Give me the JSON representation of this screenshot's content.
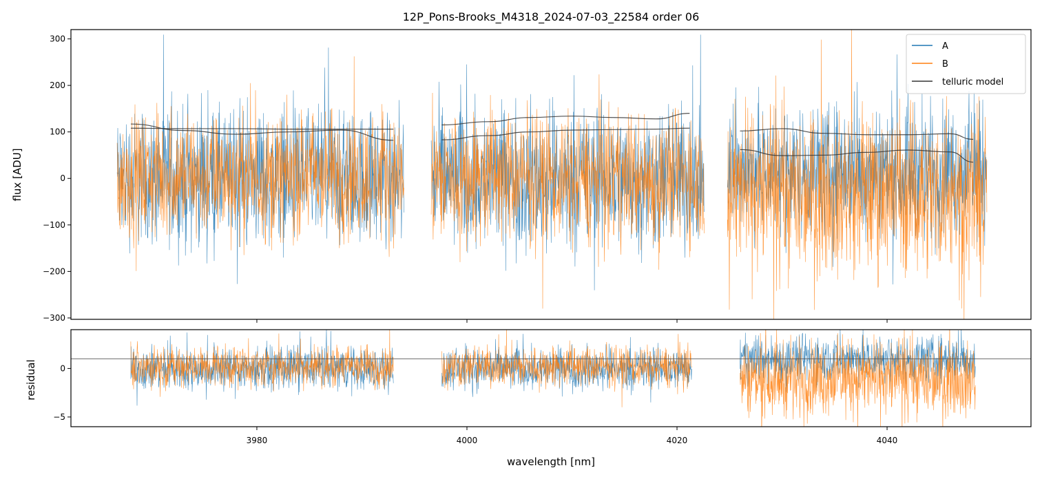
{
  "chart_data": [
    {
      "type": "line",
      "panel": "flux",
      "title": "12P_Pons-Brooks_M4318_2024-07-03_22584  order 06",
      "xlabel": "",
      "ylabel": "flux [ADU]",
      "xlim": [
        3962.3,
        4053.7
      ],
      "ylim": [
        -303,
        320
      ],
      "yticks": [
        -300,
        -200,
        -100,
        0,
        100,
        200,
        300
      ],
      "ytick_labels": [
        "−300",
        "−200",
        "−100",
        "0",
        "100",
        "200",
        "300"
      ],
      "xticks": [
        3980,
        4000,
        4020,
        4040
      ],
      "grid": false,
      "legend": {
        "placement": "top-right",
        "entries": [
          "A",
          "B",
          "telluric model"
        ]
      },
      "colors": {
        "A": "#1f77b4",
        "B": "#ff7f0e",
        "telluric model": "#000000"
      },
      "segments": [
        {
          "x_range": [
            3966.7,
            3994.0
          ],
          "A": {
            "mean": 0,
            "amplitude": 210
          },
          "B": {
            "mean": 5,
            "amplitude": 190
          }
        },
        {
          "x_range": [
            3996.6,
            4022.6
          ],
          "A": {
            "mean": 0,
            "amplitude": 220
          },
          "B": {
            "mean": 0,
            "amplitude": 200
          }
        },
        {
          "x_range": [
            4024.8,
            4049.5
          ],
          "A": {
            "mean": 20,
            "amplitude": 200
          },
          "B": {
            "mean": -30,
            "amplitude": 250
          }
        }
      ],
      "series": [
        {
          "name": "telluric model",
          "segment": 1,
          "x": [
            3968,
            3973,
            3978,
            3983,
            3988,
            3993
          ],
          "values": [
            117,
            103,
            95,
            100,
            104,
            82
          ]
        },
        {
          "name": "telluric model",
          "segment": 1,
          "x": [
            3968,
            3973,
            3978,
            3983,
            3988,
            3993
          ],
          "values": [
            108,
            107,
            107,
            106,
            106,
            106
          ]
        },
        {
          "name": "telluric model",
          "segment": 2,
          "x": [
            3997.6,
            4002,
            4006,
            4010,
            4014,
            4018,
            4021.2
          ],
          "values": [
            115,
            122,
            131,
            134,
            131,
            128,
            140
          ]
        },
        {
          "name": "telluric model",
          "segment": 2,
          "x": [
            3997.6,
            4002,
            4006,
            4010,
            4014,
            4018,
            4021.2
          ],
          "values": [
            83,
            92,
            100,
            104,
            105,
            106,
            108
          ]
        },
        {
          "name": "telluric model",
          "segment": 3,
          "x": [
            4026,
            4030,
            4034,
            4038,
            4042,
            4046,
            4048.2
          ],
          "values": [
            102,
            107,
            97,
            94,
            94,
            96,
            84
          ]
        },
        {
          "name": "telluric model",
          "segment": 3,
          "x": [
            4026,
            4030,
            4034,
            4038,
            4042,
            4046,
            4048.2
          ],
          "values": [
            62,
            49,
            50,
            56,
            61,
            57,
            35
          ]
        }
      ]
    },
    {
      "type": "line",
      "panel": "residual",
      "title": "",
      "xlabel": "wavelength [nm]",
      "ylabel": "residual",
      "xlim": [
        3962.3,
        4053.7
      ],
      "ylim": [
        -6,
        4
      ],
      "yticks": [
        -5,
        0
      ],
      "ytick_labels": [
        "−5",
        "0"
      ],
      "xticks": [
        3980,
        4000,
        4020,
        4040
      ],
      "xtick_labels": [
        "3980",
        "4000",
        "4020",
        "4040"
      ],
      "reference_line": 1,
      "grid": false,
      "segments": [
        {
          "x_range": [
            3968.0,
            3993.0
          ],
          "A": {
            "mean": 0,
            "amplitude": 3.2
          },
          "B": {
            "mean": 0.2,
            "amplitude": 3.0
          }
        },
        {
          "x_range": [
            3997.6,
            4021.4
          ],
          "A": {
            "mean": 0,
            "amplitude": 3.2
          },
          "B": {
            "mean": 0.2,
            "amplitude": 3.0
          }
        },
        {
          "x_range": [
            4026.0,
            4048.4
          ],
          "A": {
            "mean": 1,
            "amplitude": 3.5
          },
          "B": {
            "mean": -1,
            "amplitude": 5.5
          }
        }
      ]
    }
  ]
}
